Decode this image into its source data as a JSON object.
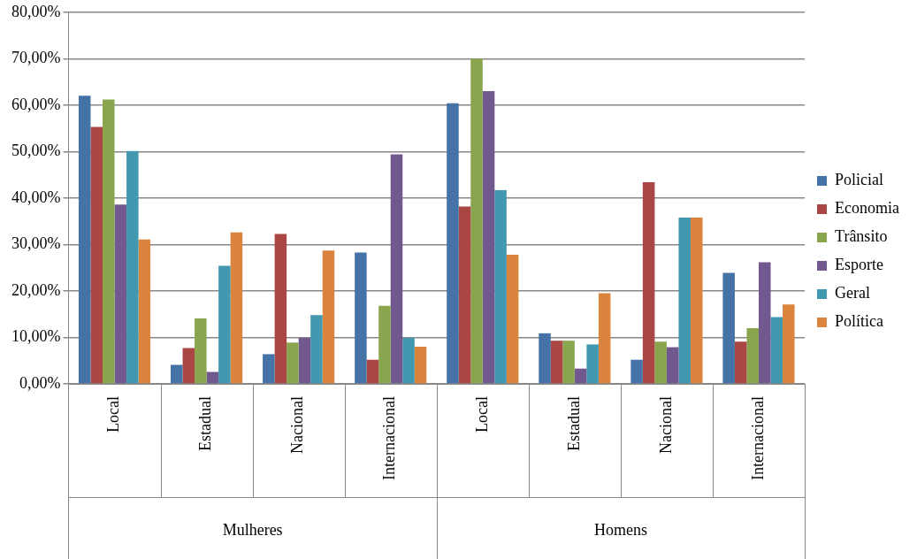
{
  "chart_data": {
    "type": "bar",
    "categories": [
      "Local",
      "Estadual",
      "Nacional",
      "Internacional",
      "Local",
      "Estadual",
      "Nacional",
      "Internacional"
    ],
    "annotations": [
      "Mulheres",
      "Homens"
    ],
    "series": [
      {
        "name": "Policial",
        "color": "#4572a7",
        "values": [
          62,
          4.1,
          6.4,
          28.3,
          60.4,
          10.9,
          5.2,
          23.9
        ]
      },
      {
        "name": "Economia",
        "color": "#aa4643",
        "values": [
          55.3,
          7.7,
          32.3,
          5.2,
          38.2,
          9.3,
          43.4,
          9.1
        ]
      },
      {
        "name": "Trânsito",
        "color": "#89a54e",
        "values": [
          61.2,
          14.1,
          8.9,
          16.8,
          70,
          9.3,
          9.1,
          12
        ]
      },
      {
        "name": "Esporte",
        "color": "#71588f",
        "values": [
          38.6,
          2.6,
          9.9,
          49.4,
          63,
          3.3,
          7.9,
          26.2
        ]
      },
      {
        "name": "Geral",
        "color": "#4198af",
        "values": [
          50.1,
          25.4,
          14.8,
          9.9,
          41.7,
          8.5,
          35.8,
          14.4
        ]
      },
      {
        "name": "Política",
        "color": "#db843d",
        "values": [
          31.1,
          32.6,
          28.7,
          8,
          27.8,
          19.5,
          35.8,
          17.1
        ]
      }
    ],
    "ylim": [
      0,
      80
    ],
    "yticks": [
      {
        "value": 0,
        "label": "0,00%"
      },
      {
        "value": 10,
        "label": "10,00%"
      },
      {
        "value": 20,
        "label": "20,00%"
      },
      {
        "value": 30,
        "label": "30,00%"
      },
      {
        "value": 40,
        "label": "40,00%"
      },
      {
        "value": 50,
        "label": "50,00%"
      },
      {
        "value": 60,
        "label": "60,00%"
      },
      {
        "value": 70,
        "label": "70,00%"
      },
      {
        "value": 80,
        "label": "80,00%"
      }
    ],
    "grid": "y",
    "legend": "right"
  }
}
